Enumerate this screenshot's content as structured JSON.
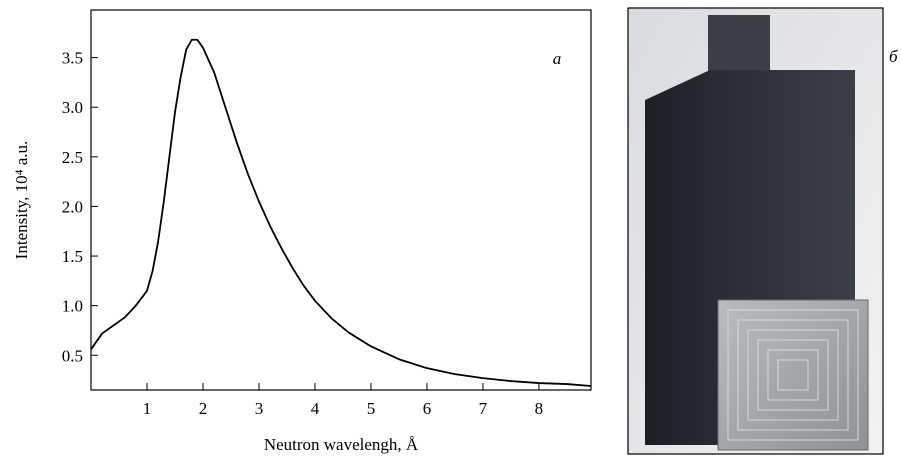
{
  "chart_data": {
    "type": "line",
    "x_label": "Neutron wavelengh, Å",
    "y_label": "Intensity, 10⁴ a.u.",
    "annotation": "a",
    "x": [
      0.0,
      0.2,
      0.4,
      0.6,
      0.8,
      1.0,
      1.1,
      1.2,
      1.3,
      1.4,
      1.5,
      1.6,
      1.7,
      1.8,
      1.9,
      2.0,
      2.2,
      2.4,
      2.6,
      2.8,
      3.0,
      3.2,
      3.4,
      3.6,
      3.8,
      4.0,
      4.3,
      4.6,
      5.0,
      5.5,
      6.0,
      6.5,
      7.0,
      7.5,
      8.0,
      8.5,
      8.93
    ],
    "values": [
      0.56,
      0.72,
      0.8,
      0.88,
      1.0,
      1.15,
      1.35,
      1.65,
      2.05,
      2.5,
      2.95,
      3.3,
      3.58,
      3.68,
      3.68,
      3.6,
      3.35,
      3.0,
      2.65,
      2.33,
      2.05,
      1.8,
      1.58,
      1.38,
      1.2,
      1.05,
      0.87,
      0.73,
      0.59,
      0.46,
      0.37,
      0.31,
      0.27,
      0.24,
      0.22,
      0.21,
      0.19
    ],
    "color": "#000000",
    "xlim": [
      0,
      8.93
    ],
    "ylim": [
      0.15,
      3.98
    ],
    "xticks": [
      1,
      2,
      3,
      4,
      5,
      6,
      7,
      8
    ],
    "yticks": [
      0.5,
      {
        "value": 1,
        "label": "1.0"
      },
      1.5,
      {
        "value": 2,
        "label": "2.0"
      },
      2.5,
      {
        "value": 3,
        "label": "3.0"
      },
      3.5
    ]
  },
  "photo": {
    "label": "б"
  }
}
